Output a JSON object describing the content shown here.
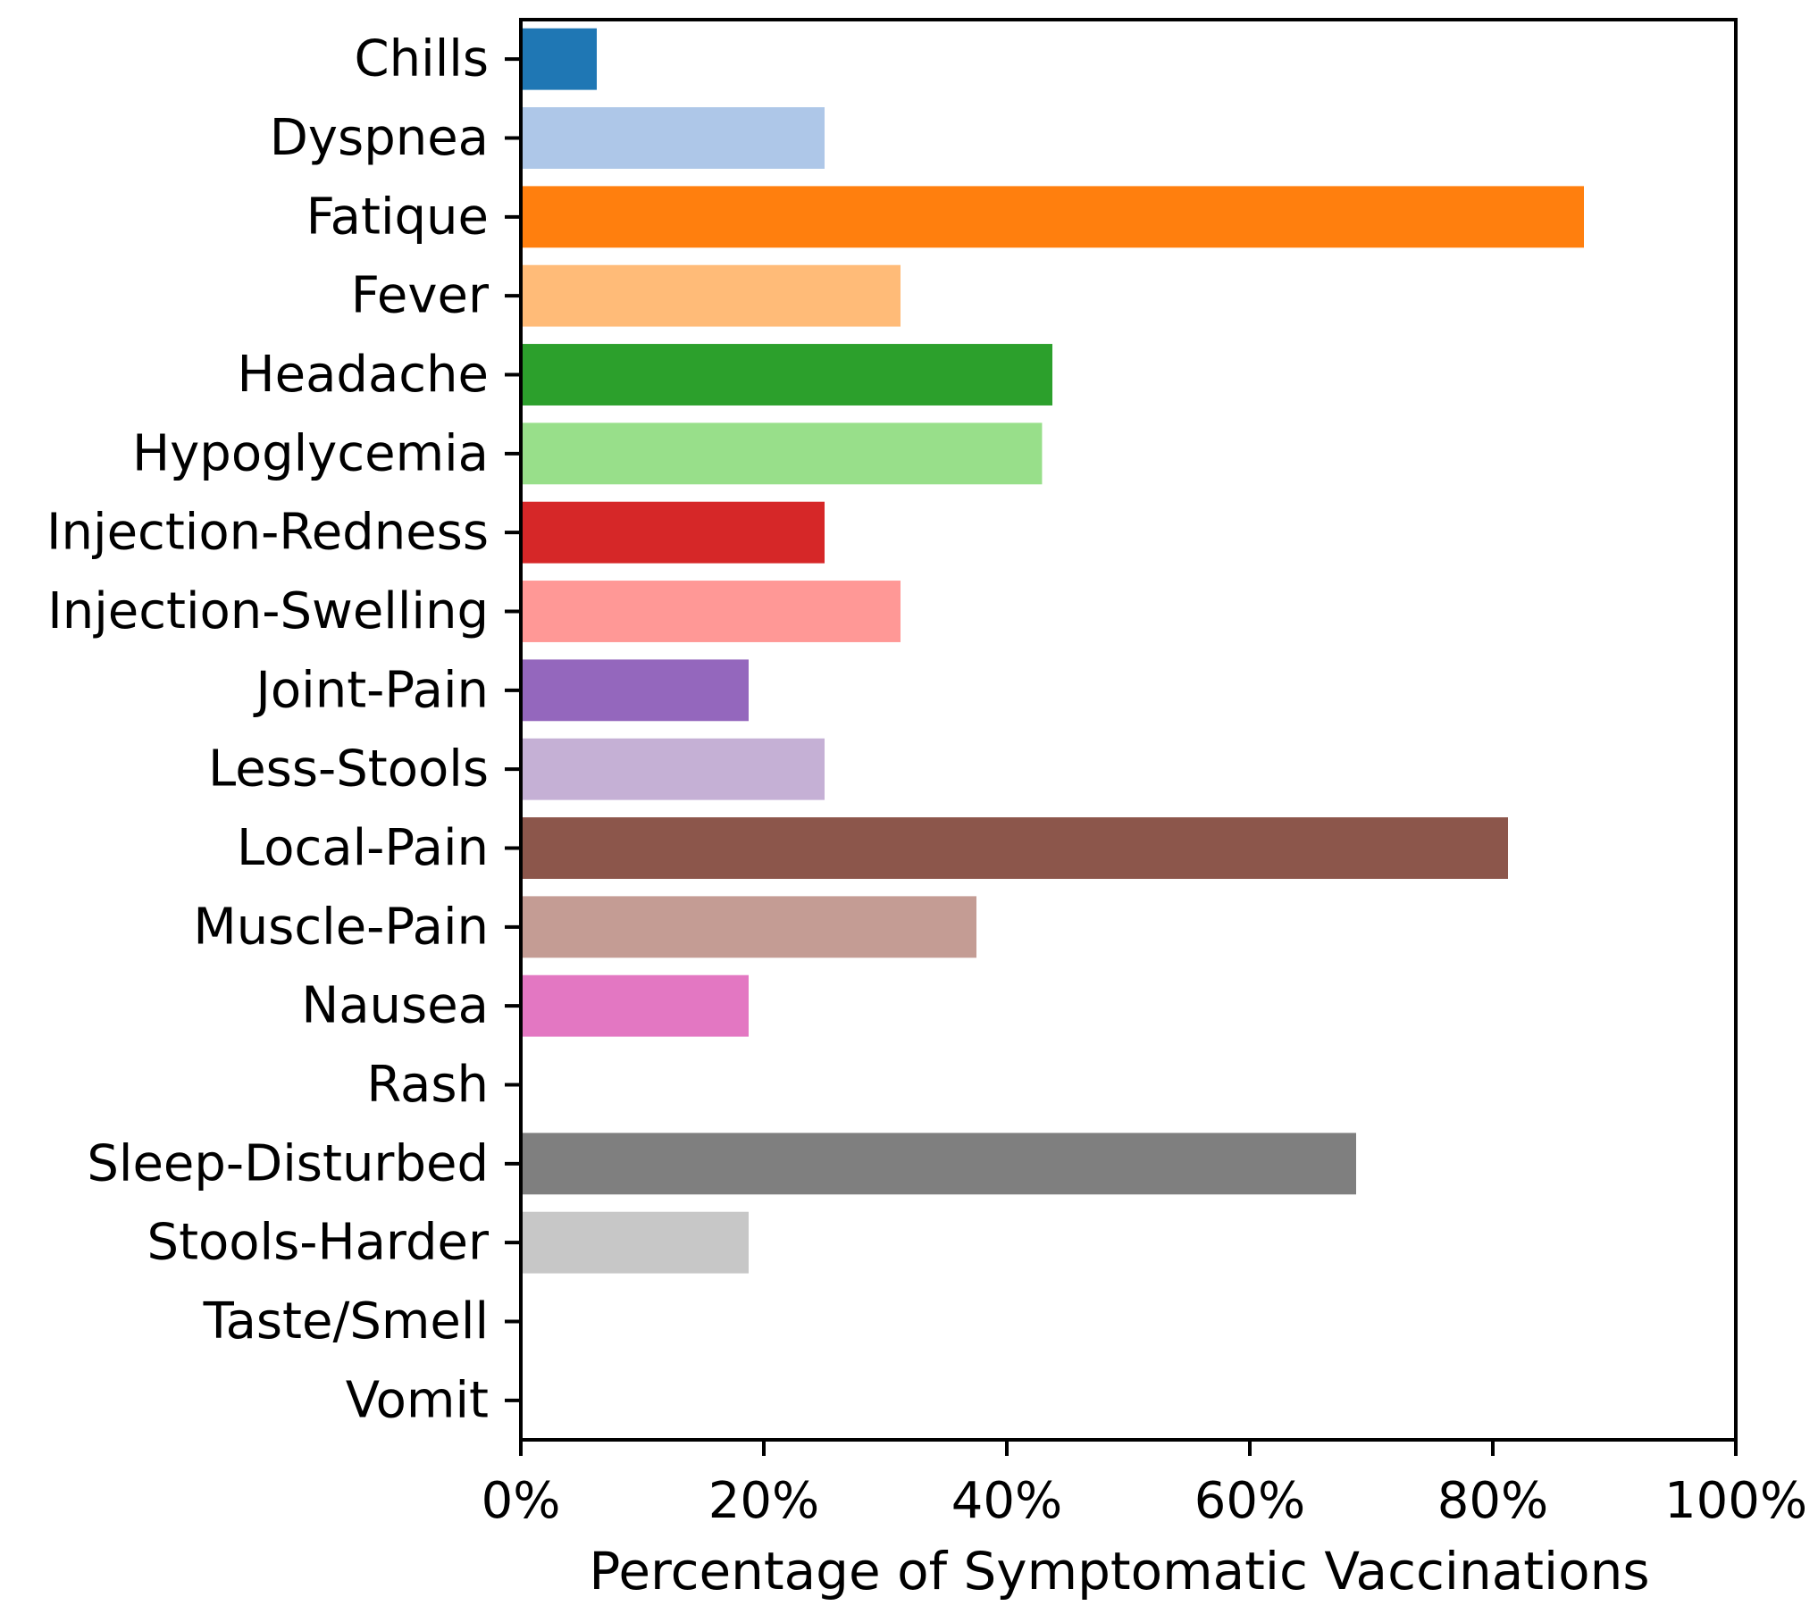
{
  "chart_data": {
    "type": "bar",
    "orientation": "horizontal",
    "title": "",
    "xlabel": "Percentage of Symptomatic Vaccinations",
    "ylabel": "",
    "xlim": [
      0,
      100
    ],
    "x_ticks": [
      "0%",
      "20%",
      "40%",
      "60%",
      "80%",
      "100%"
    ],
    "x_tick_values": [
      0,
      20,
      40,
      60,
      80,
      100
    ],
    "grid": false,
    "legend": "none",
    "categories": [
      "Chills",
      "Dyspnea",
      "Fatique",
      "Fever",
      "Headache",
      "Hypoglycemia",
      "Injection-Redness",
      "Injection-Swelling",
      "Joint-Pain",
      "Less-Stools",
      "Local-Pain",
      "Muscle-Pain",
      "Nausea",
      "Rash",
      "Sleep-Disturbed",
      "Stools-Harder",
      "Taste/Smell",
      "Vomit"
    ],
    "values": [
      6.25,
      25,
      87.5,
      31.25,
      43.75,
      42.9,
      25,
      31.25,
      18.75,
      25,
      81.25,
      37.5,
      18.75,
      0,
      68.75,
      18.75,
      0,
      0
    ],
    "colors": [
      "#1f77b4",
      "#aec7e8",
      "#ff7f0e",
      "#ffbb78",
      "#2ca02c",
      "#98df8a",
      "#d62728",
      "#ff9896",
      "#9467bd",
      "#c5b0d5",
      "#8c564b",
      "#c49c94",
      "#e377c2",
      "#f7b6d2",
      "#7f7f7f",
      "#c7c7c7",
      "#bcbd22",
      "#dbdb8d"
    ]
  }
}
